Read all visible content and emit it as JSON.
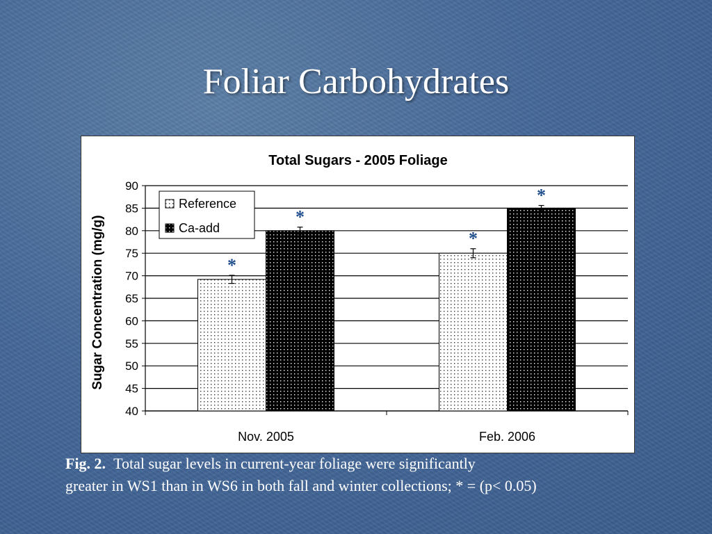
{
  "slide": {
    "title": "Foliar Carbohydrates",
    "caption_label": "Fig. 2.",
    "caption_line1": "Total sugar levels in current-year foliage were significantly",
    "caption_line2": "greater in WS1 than in WS6 in both fall and winter collections;  * = (p< 0.05)"
  },
  "chart_data": {
    "type": "bar",
    "title": "Total Sugars - 2005 Foliage",
    "ylabel": "Sugar Concentration (mg/g)",
    "xlabel": "",
    "categories": [
      "Nov. 2005",
      "Feb. 2006"
    ],
    "ylim": [
      40,
      90
    ],
    "yticks": [
      40,
      45,
      50,
      55,
      60,
      65,
      70,
      75,
      80,
      85,
      90
    ],
    "grid": true,
    "legend_position": "top-left",
    "series": [
      {
        "name": "Reference",
        "values": [
          69.2,
          75.0
        ],
        "errors": [
          0.9,
          1.0
        ],
        "pattern": "light-dots",
        "color": "#ffffff"
      },
      {
        "name": "Ca-add",
        "values": [
          80.0,
          85.0
        ],
        "errors": [
          0.8,
          0.6
        ],
        "pattern": "dark-dots",
        "color": "#000000"
      }
    ],
    "annotations": [
      {
        "text": "*",
        "series": 0,
        "category": 0
      },
      {
        "text": "*",
        "series": 1,
        "category": 0
      },
      {
        "text": "*",
        "series": 0,
        "category": 1
      },
      {
        "text": "*",
        "series": 1,
        "category": 1
      }
    ],
    "annotation_color": "#1f4e8c"
  }
}
